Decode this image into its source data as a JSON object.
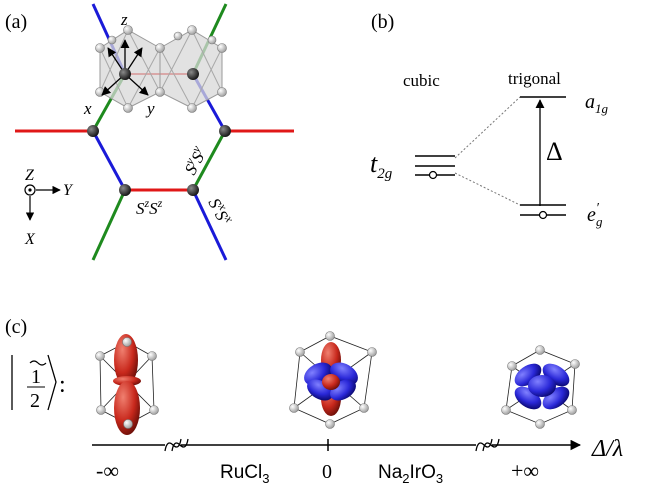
{
  "panels": {
    "a": {
      "label": "(a)",
      "axes_local": {
        "x": "x",
        "y": "y",
        "z": "z"
      },
      "axes_global": {
        "X": "X",
        "Y": "Y",
        "Z": "Z"
      },
      "bond_labels": {
        "z_main": "S",
        "z_sup": "z",
        "y_main": "S",
        "y_sup": "y",
        "x_main": "S",
        "x_sup": "x"
      },
      "bond_colors": {
        "x": "#1a1ad8",
        "y": "#1e8a1e",
        "z": "#e01818"
      }
    },
    "b": {
      "label": "(b)",
      "cubic": "cubic",
      "trigonal": "trigonal",
      "t2g_main": "t",
      "t2g_sub": "2g",
      "a1g_main": "a",
      "a1g_sub": "1g",
      "eg_main": "e",
      "eg_prime": "′",
      "eg_sub": "g",
      "delta": "Δ"
    },
    "c": {
      "label": "(c)",
      "state_ket": "1/2",
      "state_colon": ":",
      "axis_label": "Δ/λ",
      "ticks": {
        "neg_inf": "-∞",
        "ru_main": "RuCl",
        "ru_sub": "3",
        "zero": "0",
        "na_main": "Na",
        "na_sub2": "2",
        "na_mid": "IrO",
        "na_sub3": "3",
        "pos_inf": "+∞"
      },
      "orbital_colors": {
        "red": "#c8281c",
        "blue": "#2a28d8"
      }
    }
  }
}
